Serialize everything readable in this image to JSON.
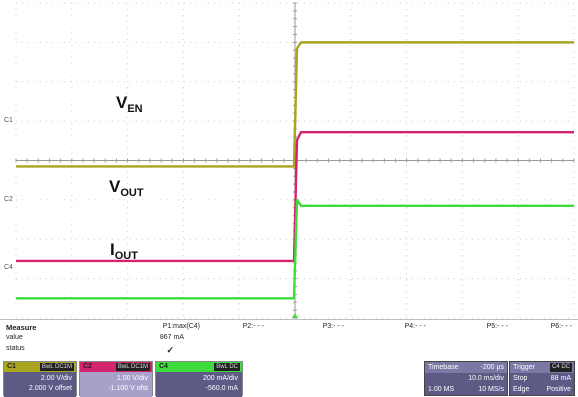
{
  "screen": {
    "labels": {
      "ven": {
        "main": "V",
        "sub": "EN"
      },
      "vout": {
        "main": "V",
        "sub": "OUT"
      },
      "iout": {
        "main": "I",
        "sub": "OUT"
      }
    },
    "channel_markers": {
      "c1": "C1",
      "c2": "C2",
      "c4": "C4"
    },
    "colors": {
      "c1": "#a9a51f",
      "c2": "#d4246e",
      "c4": "#3ddc3d",
      "grid": "#9a9a9a",
      "trigger": "#3ddc3d"
    }
  },
  "measure": {
    "title": "Measure",
    "rows": [
      "value",
      "status"
    ],
    "params": [
      {
        "name": "P1:max(C4)",
        "value": "867 mA",
        "status": "✓"
      },
      {
        "name": "P2:- - -",
        "value": "",
        "status": ""
      },
      {
        "name": "P3:- - -",
        "value": "",
        "status": ""
      },
      {
        "name": "P4:- - -",
        "value": "",
        "status": ""
      },
      {
        "name": "P5:- - -",
        "value": "",
        "status": ""
      },
      {
        "name": "P6:- - -",
        "value": "",
        "status": ""
      }
    ]
  },
  "channels": [
    {
      "name": "C1",
      "coupling": "BwL DC1M",
      "scale": "2.00 V/div",
      "offset": "2.000 V offset",
      "color": "#a9a51f",
      "body_color": "#5d5a86"
    },
    {
      "name": "C2",
      "coupling": "BwL DC1M",
      "scale": "1.00 V/div",
      "offset": "-1.100 V ofst",
      "color": "#d4246e",
      "body_color": "#a9a0c9"
    },
    {
      "name": "C4",
      "coupling": "BwL DC",
      "scale": "200 mA/div",
      "offset": "-560.0 mA",
      "color": "#3ddc3d",
      "body_color": "#5d5a86"
    }
  ],
  "timebase": {
    "title": "Timebase",
    "delay": "-200 µs",
    "scale": "10.0 ms/div",
    "samples": "1.00 MS",
    "rate": "10 MS/s"
  },
  "trigger": {
    "title": "Trigger",
    "channel": "C4 DC",
    "mode": "Stop",
    "level": "88 mA",
    "type": "Edge",
    "slope": "Positive"
  },
  "trace_levels": {
    "c1": {
      "low_div": 3.85,
      "high_div": 7.0
    },
    "c2": {
      "low_div": 1.45,
      "high_div": 4.72
    },
    "c4": {
      "low_div": 0.5,
      "high_div": 2.85
    },
    "edge_time_div": 2.18
  }
}
